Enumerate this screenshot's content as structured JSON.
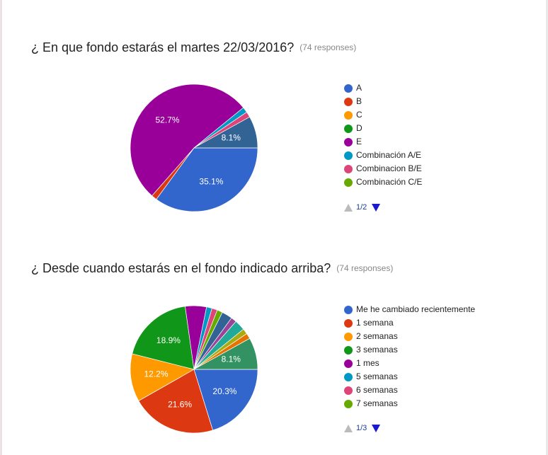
{
  "chart_data": [
    {
      "type": "pie",
      "title": "¿ En que fondo estarás el martes 22/03/2016?",
      "subtitle": "(74 responses)",
      "categories": [
        "A",
        "B",
        "C",
        "D",
        "E",
        "Combinación A/E",
        "Combinacion B/E",
        "Combinación C/E",
        null
      ],
      "values": [
        35.1,
        1.4,
        0,
        0,
        52.7,
        1.4,
        1.4,
        0,
        8.1
      ],
      "value_labels": [
        "35.1%",
        null,
        null,
        null,
        "52.7%",
        null,
        null,
        null,
        "8.1%"
      ],
      "colors": [
        "#3366cc",
        "#dc3912",
        "#ff9900",
        "#109618",
        "#990099",
        "#0099c6",
        "#dd4477",
        "#66aa00",
        "#316395"
      ],
      "legend_page": "1/2"
    },
    {
      "type": "pie",
      "title": "¿ Desde cuando estarás en el fondo indicado arriba?",
      "subtitle": "(74 responses)",
      "categories": [
        "Me he cambiado recientemente",
        "1 semana",
        "2 semanas",
        "3 semanas",
        "1 mes",
        "5 semanas",
        "6 semanas",
        "7 semanas",
        null,
        null,
        null,
        null,
        null,
        null
      ],
      "values": [
        20.3,
        21.6,
        12.2,
        18.9,
        5.4,
        1.4,
        1.4,
        1.4,
        2.7,
        1.4,
        2.7,
        1.4,
        1.4,
        8.1
      ],
      "value_labels": [
        "20.3%",
        "21.6%",
        "12.2%",
        "18.9%",
        null,
        null,
        null,
        null,
        null,
        null,
        null,
        null,
        null,
        "8.1%"
      ],
      "colors": [
        "#3366cc",
        "#dc3912",
        "#ff9900",
        "#109618",
        "#990099",
        "#0099c6",
        "#dd4477",
        "#66aa00",
        "#316395",
        "#994499",
        "#22aa99",
        "#aaaa11",
        "#e67300",
        "#329262"
      ],
      "legend_page": "1/3"
    }
  ]
}
